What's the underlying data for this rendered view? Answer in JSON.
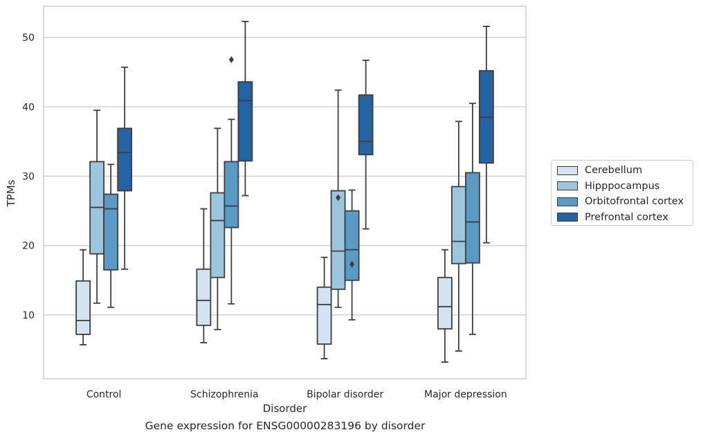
{
  "chart_data": {
    "type": "box",
    "xlabel": "Disorder",
    "ylabel": "TPMs",
    "caption": "Gene expression for ENSG00000283196 by disorder",
    "ylim": [
      0.8,
      54.5
    ],
    "yticks": [
      10,
      20,
      30,
      40,
      50
    ],
    "grid": "horizontal",
    "legend_position": "right",
    "categories": [
      "Control",
      "Schizophrenia",
      "Bipolar disorder",
      "Major depression"
    ],
    "series": [
      {
        "name": "Cerebellum",
        "color": "#d3e3f2",
        "boxes": [
          {
            "whisker_low": 5.7,
            "q1": 7.2,
            "median": 9.2,
            "q3": 14.9,
            "whisker_high": 19.4,
            "outliers": []
          },
          {
            "whisker_low": 6.0,
            "q1": 8.5,
            "median": 12.1,
            "q3": 16.6,
            "whisker_high": 25.3,
            "outliers": []
          },
          {
            "whisker_low": 3.7,
            "q1": 5.8,
            "median": 11.5,
            "q3": 14.0,
            "whisker_high": 18.3,
            "outliers": []
          },
          {
            "whisker_low": 3.2,
            "q1": 8.0,
            "median": 11.2,
            "q3": 15.4,
            "whisker_high": 19.4,
            "outliers": []
          }
        ]
      },
      {
        "name": "Hipppocampus",
        "color": "#9cc5de",
        "boxes": [
          {
            "whisker_low": 11.7,
            "q1": 18.8,
            "median": 25.5,
            "q3": 32.1,
            "whisker_high": 39.5,
            "outliers": []
          },
          {
            "whisker_low": 7.9,
            "q1": 15.4,
            "median": 23.6,
            "q3": 27.6,
            "whisker_high": 36.9,
            "outliers": []
          },
          {
            "whisker_low": 11.1,
            "q1": 13.7,
            "median": 19.2,
            "q3": 27.9,
            "whisker_high": 42.4,
            "outliers": [
              26.9
            ]
          },
          {
            "whisker_low": 4.8,
            "q1": 17.4,
            "median": 20.6,
            "q3": 28.5,
            "whisker_high": 37.9,
            "outliers": []
          }
        ]
      },
      {
        "name": "Orbitofrontal cortex",
        "color": "#5a9bc6",
        "boxes": [
          {
            "whisker_low": 11.1,
            "q1": 16.5,
            "median": 25.3,
            "q3": 27.4,
            "whisker_high": 31.7,
            "outliers": []
          },
          {
            "whisker_low": 11.6,
            "q1": 22.6,
            "median": 25.7,
            "q3": 32.1,
            "whisker_high": 38.2,
            "outliers": [
              46.8
            ]
          },
          {
            "whisker_low": 9.3,
            "q1": 15.0,
            "median": 19.4,
            "q3": 25.0,
            "whisker_high": 28.0,
            "outliers": [
              17.3
            ]
          },
          {
            "whisker_low": 7.2,
            "q1": 17.5,
            "median": 23.4,
            "q3": 30.5,
            "whisker_high": 40.5,
            "outliers": []
          }
        ]
      },
      {
        "name": "Prefrontal cortex",
        "color": "#2564a3",
        "boxes": [
          {
            "whisker_low": 16.6,
            "q1": 27.9,
            "median": 33.4,
            "q3": 36.9,
            "whisker_high": 45.7,
            "outliers": []
          },
          {
            "whisker_low": 27.2,
            "q1": 32.2,
            "median": 40.9,
            "q3": 43.6,
            "whisker_high": 52.3,
            "outliers": []
          },
          {
            "whisker_low": 22.4,
            "q1": 33.1,
            "median": 35.0,
            "q3": 41.7,
            "whisker_high": 46.7,
            "outliers": []
          },
          {
            "whisker_low": 20.4,
            "q1": 31.9,
            "median": 38.5,
            "q3": 45.2,
            "whisker_high": 51.6,
            "outliers": []
          }
        ]
      }
    ]
  }
}
